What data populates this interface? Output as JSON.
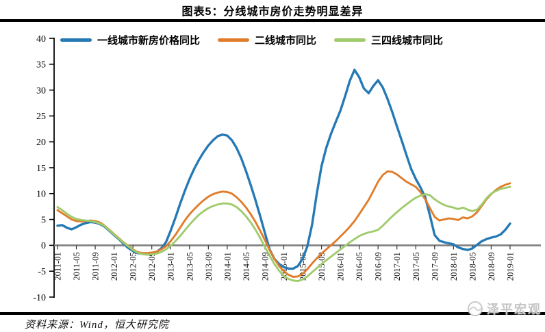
{
  "title": "图表5：分线城市房价走势明显差异",
  "footer": {
    "source_label": "资料来源：Wind，恒大研究院"
  },
  "watermark": {
    "text": "泽平宏观"
  },
  "colors": {
    "tier1_blue": "#2579B5",
    "tier2_orange": "#E07D2B",
    "tier3_green": "#A0CB6C",
    "zero_line": "#7F7F7F",
    "axis": "#000000",
    "rule": "#000000",
    "watermark_gray": "#C5C5C5"
  },
  "chart_data": {
    "type": "line",
    "title": "图表5：分线城市房价走势明显差异",
    "x_start": "2011-01",
    "x_end": "2019-01",
    "x_frequency": "monthly",
    "x_tick_labels": [
      "2011-01",
      "2011-05",
      "2011-09",
      "2012-01",
      "2012-05",
      "2012-09",
      "2013-01",
      "2013-05",
      "2013-09",
      "2014-01",
      "2014-05",
      "2014-09",
      "2015-01",
      "2015-05",
      "2015-09",
      "2016-01",
      "2016-05",
      "2016-09",
      "2017-01",
      "2017-05",
      "2017-09",
      "2018-01",
      "2018-05",
      "2018-09",
      "2019-01"
    ],
    "ylim": [
      -10,
      40
    ],
    "y_tick_step": 5,
    "y_tick_labels": [
      40,
      35,
      30,
      25,
      20,
      15,
      10,
      5,
      0,
      -5,
      -10
    ],
    "grid": false,
    "legend_position": "top-inside-horizontal",
    "series": [
      {
        "name": "一线城市新房价格同比",
        "color": "#2579B5",
        "values": [
          3.8,
          3.9,
          3.4,
          3.1,
          3.5,
          4.0,
          4.3,
          4.5,
          4.4,
          4.1,
          3.6,
          2.8,
          2.0,
          1.2,
          0.3,
          -0.5,
          -1.1,
          -1.5,
          -1.6,
          -1.6,
          -1.5,
          -1.3,
          -0.6,
          0.6,
          2.8,
          5.3,
          8.0,
          10.5,
          12.8,
          14.8,
          16.5,
          18.0,
          19.3,
          20.3,
          21.1,
          21.4,
          21.2,
          20.3,
          18.8,
          16.8,
          14.3,
          11.6,
          8.7,
          5.6,
          2.4,
          -0.8,
          -2.6,
          -3.6,
          -4.2,
          -4.5,
          -4.5,
          -4.0,
          -2.6,
          -0.2,
          4.0,
          10.0,
          15.3,
          18.8,
          21.5,
          23.8,
          26.0,
          28.8,
          31.8,
          33.9,
          32.5,
          30.3,
          29.4,
          30.8,
          31.9,
          30.5,
          28.3,
          25.8,
          23.0,
          20.3,
          17.5,
          14.8,
          12.8,
          11.2,
          9.3,
          5.8,
          2.0,
          0.9,
          0.6,
          0.4,
          0.2,
          -0.4,
          -0.7,
          -0.9,
          -0.6,
          0.1,
          0.8,
          1.2,
          1.5,
          1.7,
          2.1,
          3.0,
          4.2
        ]
      },
      {
        "name": "二线城市同比",
        "color": "#E07D2B",
        "values": [
          6.8,
          6.2,
          5.6,
          5.0,
          4.7,
          4.6,
          4.7,
          4.8,
          4.7,
          4.4,
          3.8,
          3.0,
          2.2,
          1.4,
          0.6,
          -0.1,
          -0.8,
          -1.3,
          -1.5,
          -1.5,
          -1.4,
          -1.2,
          -0.8,
          -0.2,
          0.8,
          2.0,
          3.4,
          4.8,
          6.0,
          7.0,
          7.9,
          8.7,
          9.4,
          9.9,
          10.2,
          10.4,
          10.3,
          10.0,
          9.3,
          8.4,
          7.3,
          6.0,
          4.5,
          2.8,
          1.0,
          -0.9,
          -2.6,
          -4.0,
          -5.0,
          -5.7,
          -6.1,
          -6.0,
          -5.5,
          -4.6,
          -3.5,
          -2.5,
          -1.6,
          -0.8,
          0.0,
          0.8,
          1.7,
          2.6,
          3.6,
          4.7,
          6.0,
          7.4,
          8.8,
          10.5,
          12.3,
          13.6,
          14.3,
          14.2,
          13.7,
          13.0,
          12.3,
          11.8,
          11.3,
          10.3,
          8.9,
          7.2,
          5.5,
          4.8,
          5.0,
          5.2,
          5.1,
          4.9,
          5.4,
          5.2,
          5.6,
          6.4,
          7.6,
          8.9,
          9.9,
          10.7,
          11.3,
          11.7,
          12.0
        ]
      },
      {
        "name": "三四线城市同比",
        "color": "#A0CB6C",
        "values": [
          7.4,
          6.8,
          6.1,
          5.5,
          5.1,
          4.9,
          4.8,
          4.7,
          4.5,
          4.2,
          3.7,
          2.9,
          2.1,
          1.3,
          0.5,
          -0.2,
          -0.9,
          -1.4,
          -1.7,
          -1.8,
          -1.7,
          -1.6,
          -1.3,
          -0.8,
          -0.1,
          0.8,
          1.8,
          2.9,
          4.0,
          5.0,
          5.9,
          6.6,
          7.2,
          7.6,
          7.9,
          8.1,
          8.1,
          7.9,
          7.4,
          6.6,
          5.6,
          4.4,
          3.0,
          1.4,
          -0.3,
          -2.0,
          -3.6,
          -4.9,
          -5.9,
          -6.5,
          -6.8,
          -6.9,
          -6.6,
          -6.0,
          -5.2,
          -4.4,
          -3.6,
          -2.9,
          -2.2,
          -1.5,
          -0.8,
          -0.1,
          0.6,
          1.2,
          1.8,
          2.2,
          2.5,
          2.7,
          3.0,
          3.8,
          4.7,
          5.6,
          6.4,
          7.2,
          7.9,
          8.6,
          9.2,
          9.6,
          9.9,
          9.7,
          8.9,
          8.3,
          7.8,
          7.5,
          7.3,
          7.0,
          7.3,
          6.9,
          6.6,
          6.9,
          7.9,
          9.1,
          10.0,
          10.5,
          10.9,
          11.1,
          11.3
        ]
      }
    ]
  }
}
